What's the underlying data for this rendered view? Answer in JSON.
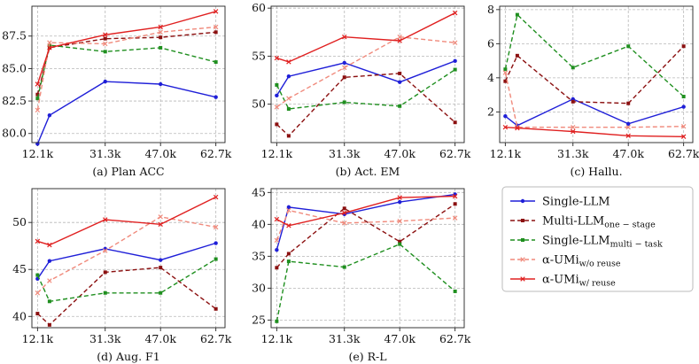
{
  "colors": {
    "single_llm": "#1f1fd8",
    "multi_llm": "#8b1010",
    "single_multitask": "#1f8f1f",
    "umi_wo": "#f08a7c",
    "umi_w": "#e02020"
  },
  "legend": {
    "items": [
      {
        "key": "single_llm",
        "base": "Single-LLM",
        "sub": "",
        "style": "solid",
        "marker": "circle"
      },
      {
        "key": "multi_llm",
        "base": "Multi-LLM",
        "sub": "one − stage",
        "style": "dash",
        "marker": "square"
      },
      {
        "key": "single_multitask",
        "base": "Single-LLM",
        "sub": "multi − task",
        "style": "dash",
        "marker": "square"
      },
      {
        "key": "umi_wo",
        "base": "α-UMi",
        "sub": "w/o reuse",
        "style": "dash",
        "marker": "x"
      },
      {
        "key": "umi_w",
        "base": "α-UMi",
        "sub": "w/ reuse",
        "style": "solid",
        "marker": "x"
      }
    ]
  },
  "chart_data": [
    {
      "type": "line",
      "caption": "(a) Plan ACC",
      "x_ticks": [
        "12.1k",
        "31.3k",
        "47.0k",
        "62.7k"
      ],
      "x": [
        12.1,
        15.5,
        31.3,
        47.0,
        62.7
      ],
      "ylim": [
        79.3,
        89.8
      ],
      "y_ticks": [
        80.0,
        82.5,
        85.0,
        87.5
      ],
      "y_tick_labels": [
        "80.0",
        "82.5",
        "85.0",
        "87.5"
      ],
      "series": [
        {
          "key": "single_llm",
          "x": [
            12.1,
            15.5,
            31.3,
            47.0,
            62.7
          ],
          "values": [
            79.2,
            81.4,
            84.0,
            83.8,
            82.8
          ]
        },
        {
          "key": "multi_llm",
          "x": [
            12.1,
            15.5,
            31.3,
            47.0,
            62.7
          ],
          "values": [
            83.0,
            86.6,
            87.3,
            87.4,
            87.8
          ]
        },
        {
          "key": "single_multitask",
          "x": [
            12.1,
            15.5,
            31.3,
            47.0,
            62.7
          ],
          "values": [
            82.7,
            86.8,
            86.3,
            86.6,
            85.5
          ]
        },
        {
          "key": "umi_wo",
          "x": [
            12.1,
            15.5,
            31.3,
            47.0,
            62.7
          ],
          "values": [
            81.8,
            87.0,
            86.9,
            87.8,
            88.2
          ]
        },
        {
          "key": "umi_w",
          "x": [
            12.1,
            15.5,
            31.3,
            47.0,
            62.7
          ],
          "values": [
            83.8,
            86.6,
            87.6,
            88.2,
            89.4
          ]
        }
      ]
    },
    {
      "type": "line",
      "caption": "(b) Act. EM",
      "x_ticks": [
        "12.1k",
        "31.3k",
        "47.0k",
        "62.7k"
      ],
      "x": [
        12.1,
        15.5,
        31.3,
        47.0,
        62.7
      ],
      "ylim": [
        46.0,
        60.2
      ],
      "y_ticks": [
        50,
        55,
        60
      ],
      "y_tick_labels": [
        "50",
        "55",
        "60"
      ],
      "series": [
        {
          "key": "single_llm",
          "x": [
            12.1,
            15.5,
            31.3,
            47.0,
            62.7
          ],
          "values": [
            50.9,
            52.9,
            54.3,
            52.3,
            54.5
          ]
        },
        {
          "key": "multi_llm",
          "x": [
            12.1,
            15.5,
            31.3,
            47.0,
            62.7
          ],
          "values": [
            47.9,
            46.7,
            52.8,
            53.2,
            48.1
          ]
        },
        {
          "key": "single_multitask",
          "x": [
            12.1,
            15.5,
            31.3,
            47.0,
            62.7
          ],
          "values": [
            52.0,
            49.5,
            50.2,
            49.8,
            53.6
          ]
        },
        {
          "key": "umi_wo",
          "x": [
            12.1,
            15.5,
            31.3,
            47.0,
            62.7
          ],
          "values": [
            49.7,
            50.6,
            53.8,
            57.0,
            56.4
          ]
        },
        {
          "key": "umi_w",
          "x": [
            12.1,
            15.5,
            31.3,
            47.0,
            62.7
          ],
          "values": [
            54.8,
            54.4,
            57.0,
            56.6,
            59.5
          ]
        }
      ]
    },
    {
      "type": "line",
      "caption": "(c) Hallu.",
      "x_ticks": [
        "12.1k",
        "31.3k",
        "47.0k",
        "62.7k"
      ],
      "x": [
        12.1,
        15.5,
        31.3,
        47.0,
        62.7
      ],
      "ylim": [
        0.2,
        8.2
      ],
      "y_ticks": [
        2,
        4,
        6,
        8
      ],
      "y_tick_labels": [
        "2",
        "4",
        "6",
        "8"
      ],
      "series": [
        {
          "key": "single_llm",
          "x": [
            12.1,
            15.5,
            31.3,
            47.0,
            62.7
          ],
          "values": [
            1.75,
            1.2,
            2.75,
            1.3,
            2.3
          ]
        },
        {
          "key": "multi_llm",
          "x": [
            12.1,
            15.5,
            31.3,
            47.0,
            62.7
          ],
          "values": [
            3.8,
            5.3,
            2.6,
            2.5,
            5.85
          ]
        },
        {
          "key": "single_multitask",
          "x": [
            12.1,
            15.5,
            31.3,
            47.0,
            62.7
          ],
          "values": [
            4.5,
            7.7,
            4.6,
            5.85,
            2.9
          ]
        },
        {
          "key": "umi_wo",
          "x": [
            12.1,
            15.5,
            31.3,
            47.0,
            62.7
          ],
          "values": [
            4.3,
            1.1,
            1.1,
            1.1,
            1.15
          ]
        },
        {
          "key": "umi_w",
          "x": [
            12.1,
            15.5,
            31.3,
            47.0,
            62.7
          ],
          "values": [
            1.1,
            1.05,
            0.85,
            0.6,
            0.55
          ]
        }
      ]
    },
    {
      "type": "line",
      "caption": "(d) Aug. F1",
      "x_ticks": [
        "12.1k",
        "31.3k",
        "47.0k",
        "62.7k"
      ],
      "x": [
        12.1,
        15.5,
        31.3,
        47.0,
        62.7
      ],
      "ylim": [
        38.8,
        53.6
      ],
      "y_ticks": [
        40,
        45,
        50
      ],
      "y_tick_labels": [
        "40",
        "45",
        "50"
      ],
      "series": [
        {
          "key": "single_llm",
          "x": [
            12.1,
            15.5,
            31.3,
            47.0,
            62.7
          ],
          "values": [
            44.0,
            45.9,
            47.2,
            46.0,
            47.8
          ]
        },
        {
          "key": "multi_llm",
          "x": [
            12.1,
            15.5,
            31.3,
            47.0,
            62.7
          ],
          "values": [
            40.3,
            39.1,
            44.7,
            45.2,
            40.8
          ]
        },
        {
          "key": "single_multitask",
          "x": [
            12.1,
            15.5,
            31.3,
            47.0,
            62.7
          ],
          "values": [
            44.4,
            41.6,
            42.5,
            42.5,
            46.1
          ]
        },
        {
          "key": "umi_wo",
          "x": [
            12.1,
            15.5,
            31.3,
            47.0,
            62.7
          ],
          "values": [
            42.5,
            43.8,
            47.0,
            50.6,
            49.5
          ]
        },
        {
          "key": "umi_w",
          "x": [
            12.1,
            15.5,
            31.3,
            47.0,
            62.7
          ],
          "values": [
            48.0,
            47.6,
            50.3,
            49.8,
            52.7
          ]
        }
      ]
    },
    {
      "type": "line",
      "caption": "(e) R-L",
      "x_ticks": [
        "12.1k",
        "31.3k",
        "47.0k",
        "62.7k"
      ],
      "x": [
        12.1,
        15.5,
        31.3,
        47.0,
        62.7
      ],
      "ylim": [
        23.8,
        45.6
      ],
      "y_ticks": [
        25,
        30,
        35,
        40,
        45
      ],
      "y_tick_labels": [
        "25",
        "30",
        "35",
        "40",
        "45"
      ],
      "series": [
        {
          "key": "single_llm",
          "x": [
            12.1,
            15.5,
            31.3,
            47.0,
            62.7
          ],
          "values": [
            36.0,
            42.7,
            41.6,
            43.5,
            44.7
          ]
        },
        {
          "key": "multi_llm",
          "x": [
            12.1,
            15.5,
            31.3,
            47.0,
            62.7
          ],
          "values": [
            33.2,
            35.4,
            42.5,
            37.3,
            43.2
          ]
        },
        {
          "key": "single_multitask",
          "x": [
            12.1,
            15.5,
            31.3,
            47.0,
            62.7
          ],
          "values": [
            24.8,
            34.2,
            33.3,
            36.9,
            29.5
          ]
        },
        {
          "key": "umi_wo",
          "x": [
            12.1,
            15.5,
            31.3,
            47.0,
            62.7
          ],
          "values": [
            37.5,
            42.2,
            40.2,
            40.5,
            41.0
          ]
        },
        {
          "key": "umi_w",
          "x": [
            12.1,
            15.5,
            31.3,
            47.0,
            62.7
          ],
          "values": [
            40.8,
            39.8,
            41.8,
            44.2,
            44.4
          ]
        }
      ]
    }
  ]
}
